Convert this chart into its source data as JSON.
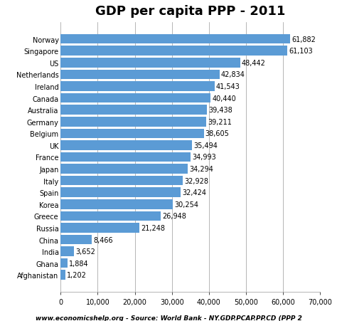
{
  "title": "GDP per capita PPP - 2011",
  "countries": [
    "Norway",
    "Singapore",
    "US",
    "Netherlands",
    "Ireland",
    "Canada",
    "Australia",
    "Germany",
    "Belgium",
    "UK",
    "France",
    "Japan",
    "Italy",
    "Spain",
    "Korea",
    "Greece",
    "Russia",
    "China",
    "India",
    "Ghana",
    "Afghanistan"
  ],
  "values": [
    61882,
    61103,
    48442,
    42834,
    41543,
    40440,
    39438,
    39211,
    38605,
    35494,
    34993,
    34294,
    32928,
    32424,
    30254,
    26948,
    21248,
    8466,
    3652,
    1884,
    1202
  ],
  "labels": [
    "61,882",
    "61,103",
    "48,442",
    "42,834",
    "41,543",
    "40,440",
    "39,438",
    "39,211",
    "38,605",
    "35,494",
    "34,993",
    "34,294",
    "32,928",
    "32,424",
    "30,254",
    "26,948",
    "21,248",
    "8,466",
    "3,652",
    "1,884",
    "1,202"
  ],
  "bar_color": "#5B9BD5",
  "xlim": [
    0,
    70000
  ],
  "xticks": [
    0,
    10000,
    20000,
    30000,
    40000,
    50000,
    60000,
    70000
  ],
  "xtick_labels": [
    "0",
    "10,000",
    "20,000",
    "30,000",
    "40,000",
    "50,000",
    "60,000",
    "70,000"
  ],
  "footer": "www.economicshelp.org - Source: World Bank - NY.GDP.PCAP.PP.CD (PPP 2",
  "title_fontsize": 13,
  "label_fontsize": 7,
  "tick_fontsize": 7,
  "footer_fontsize": 6.5,
  "background_color": "#FFFFFF"
}
